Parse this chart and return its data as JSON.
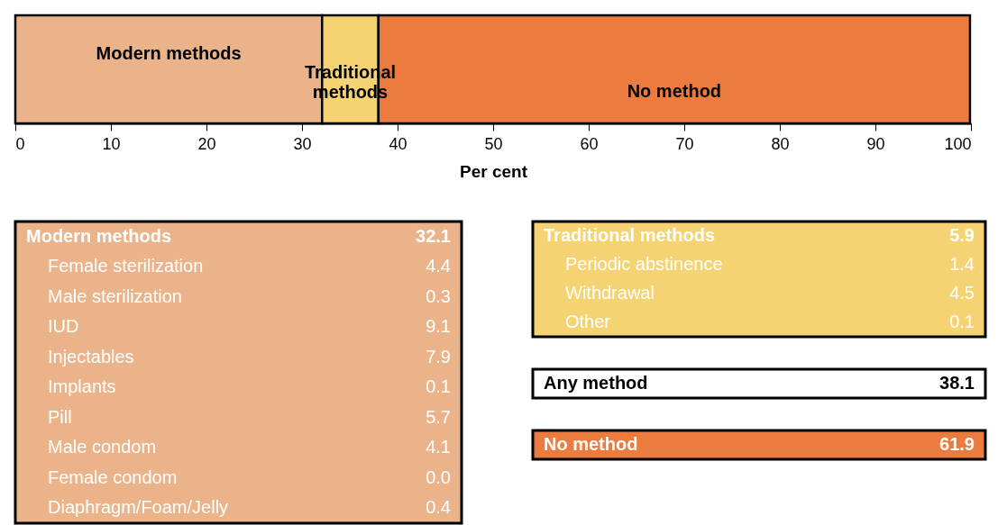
{
  "chart_data": [
    {
      "type": "bar",
      "orientation": "horizontal",
      "stacked": true,
      "xlabel": "Per cent",
      "categories": [
        null
      ],
      "xlim": [
        0,
        100
      ],
      "xticks": [
        0,
        10,
        20,
        30,
        40,
        50,
        60,
        70,
        80,
        90,
        100
      ],
      "series": [
        {
          "name": "Modern methods",
          "color": "#ebb38a",
          "values": [
            32.1
          ]
        },
        {
          "name": "Traditional methods",
          "color": "#f5d372",
          "values": [
            5.9
          ]
        },
        {
          "name": "No method",
          "color": "#eb7b3f",
          "values": [
            61.9
          ]
        }
      ]
    },
    {
      "type": "other",
      "color": "#ebb38a",
      "categories": [
        "Modern methods",
        "Female sterilization",
        "Male sterilization",
        "IUD",
        "Injectables",
        "Implants",
        "Pill",
        "Male condom",
        "Female condom",
        "Diaphragm/Foam/Jelly"
      ],
      "value_labels": [
        "32.1",
        "4.4",
        "0.3",
        "9.1",
        "7.9",
        "0.1",
        "5.7",
        "4.1",
        "0.0",
        "0.4"
      ]
    },
    {
      "type": "other",
      "color": "#f5d372",
      "categories": [
        "Traditional methods",
        "Periodic abstinence",
        "Withdrawal",
        "Other"
      ],
      "value_labels": [
        "5.9",
        "1.4",
        "4.5",
        "0.1"
      ]
    },
    {
      "type": "other",
      "color": "#ffffff",
      "categories": [
        "Any method"
      ],
      "value_labels": [
        "38.1"
      ]
    },
    {
      "type": "other",
      "color": "#eb7b3f",
      "categories": [
        "No method"
      ],
      "value_labels": [
        "61.9"
      ]
    }
  ]
}
